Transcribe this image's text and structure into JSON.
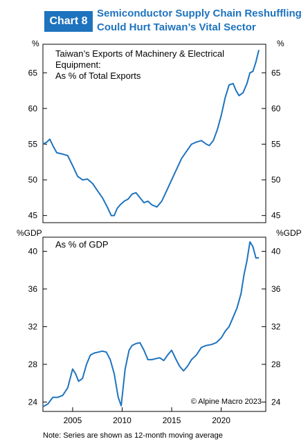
{
  "header": {
    "badge": "Chart 8",
    "title_line1": "Semiconductor Supply Chain Reshuffling",
    "title_line2": "Could Hurt Taiwan’s Vital Sector"
  },
  "note": "Note: Series are shown as 12-month moving average",
  "copyright": "© Alpine Macro 2023",
  "colors": {
    "accent": "#1e73be",
    "line": "#1e73be"
  },
  "chart_data": [
    {
      "type": "line",
      "annotation_lines": [
        "Taiwan’s Exports of Machinery & Electrical",
        "Equipment:",
        "As % of Total Exports"
      ],
      "unit_left": "%",
      "unit_right": "%",
      "ylim": [
        44,
        69
      ],
      "yticks": [
        45,
        50,
        55,
        60,
        65
      ],
      "xlim": [
        2002,
        2024.5
      ],
      "series": [
        {
          "x": [
            2002.0,
            2002.4,
            2002.7,
            2003.0,
            2003.4,
            2004.0,
            2004.5,
            2005.0,
            2005.5,
            2006.0,
            2006.5,
            2007.0,
            2007.5,
            2008.0,
            2008.5,
            2008.9,
            2009.2,
            2009.5,
            2009.8,
            2010.2,
            2010.6,
            2011.0,
            2011.4,
            2011.8,
            2012.2,
            2012.6,
            2013.0,
            2013.5,
            2014.0,
            2014.5,
            2015.0,
            2015.5,
            2016.0,
            2016.5,
            2017.0,
            2017.5,
            2018.0,
            2018.5,
            2018.8,
            2019.2,
            2019.6,
            2020.0,
            2020.4,
            2020.8,
            2021.2,
            2021.5,
            2021.8,
            2022.2,
            2022.6,
            2022.9,
            2023.2,
            2023.5,
            2023.8
          ],
          "y": [
            55.0,
            55.3,
            55.7,
            54.8,
            53.8,
            53.6,
            53.4,
            52.0,
            50.5,
            50.0,
            50.1,
            49.5,
            48.5,
            47.5,
            46.2,
            45.0,
            45.0,
            46.0,
            46.5,
            47.0,
            47.3,
            48.0,
            48.2,
            47.5,
            46.8,
            47.0,
            46.5,
            46.2,
            47.0,
            48.5,
            50.0,
            51.5,
            53.0,
            54.0,
            55.0,
            55.3,
            55.5,
            55.0,
            54.8,
            55.5,
            57.0,
            59.0,
            61.5,
            63.3,
            63.5,
            62.5,
            61.8,
            62.2,
            63.5,
            65.0,
            65.2,
            66.5,
            68.2
          ]
        }
      ]
    },
    {
      "type": "line",
      "annotation_lines": [
        "As % of GDP"
      ],
      "unit_left": "%GDP",
      "unit_right": "%GDP",
      "ylim": [
        23,
        41.5
      ],
      "yticks": [
        24,
        28,
        32,
        36,
        40
      ],
      "xlim": [
        2002,
        2024.5
      ],
      "xticks": [
        2005,
        2010,
        2015,
        2020
      ],
      "series": [
        {
          "x": [
            2002.0,
            2002.5,
            2003.0,
            2003.5,
            2004.0,
            2004.5,
            2005.0,
            2005.3,
            2005.6,
            2006.0,
            2006.4,
            2006.8,
            2007.2,
            2007.6,
            2008.0,
            2008.4,
            2008.8,
            2009.2,
            2009.6,
            2009.9,
            2010.3,
            2010.7,
            2011.0,
            2011.4,
            2011.8,
            2012.2,
            2012.6,
            2013.0,
            2013.4,
            2013.8,
            2014.2,
            2014.6,
            2015.0,
            2015.4,
            2015.8,
            2016.2,
            2016.6,
            2017.0,
            2017.5,
            2018.0,
            2018.5,
            2019.0,
            2019.5,
            2020.0,
            2020.4,
            2020.8,
            2021.2,
            2021.6,
            2022.0,
            2022.3,
            2022.6,
            2022.9,
            2023.2,
            2023.5,
            2023.8
          ],
          "y": [
            23.5,
            23.8,
            24.5,
            24.5,
            24.7,
            25.5,
            27.5,
            27.0,
            26.2,
            26.5,
            28.0,
            29.0,
            29.2,
            29.3,
            29.4,
            29.3,
            28.5,
            27.0,
            24.5,
            23.6,
            27.5,
            29.5,
            30.0,
            30.2,
            30.3,
            29.5,
            28.5,
            28.5,
            28.6,
            28.7,
            28.4,
            29.0,
            29.5,
            28.6,
            27.8,
            27.3,
            27.8,
            28.5,
            29.0,
            29.8,
            30.0,
            30.1,
            30.3,
            30.8,
            31.5,
            32.0,
            33.0,
            34.0,
            35.5,
            37.5,
            39.0,
            41.0,
            40.5,
            39.3,
            39.3
          ]
        }
      ]
    }
  ]
}
